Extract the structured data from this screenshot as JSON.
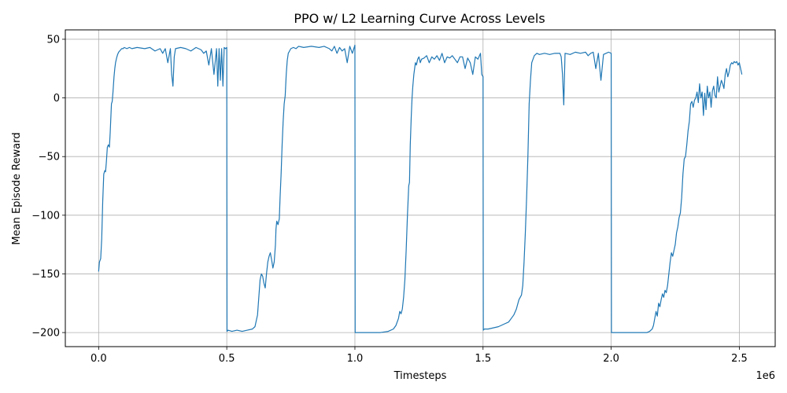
{
  "chart_data": {
    "type": "line",
    "title": "PPO w/ L2 Learning Curve Across Levels",
    "xlabel": "Timesteps",
    "ylabel": "Mean Episode Reward",
    "x_offset_label": "1e6",
    "xlim": [
      -0.13,
      2.64
    ],
    "ylim": [
      -212,
      58
    ],
    "x_ticks": [
      0.0,
      0.5,
      1.0,
      1.5,
      2.0,
      2.5
    ],
    "x_tick_labels": [
      "0.0",
      "0.5",
      "1.0",
      "1.5",
      "2.0",
      "2.5"
    ],
    "y_ticks": [
      50,
      0,
      -50,
      -100,
      -150,
      -200
    ],
    "y_tick_labels": [
      "50",
      "0",
      "−50",
      "−100",
      "−150",
      "−200"
    ],
    "grid": true,
    "line_color": "#1f77b4",
    "series": [
      {
        "x": [
          0.0,
          0.003,
          0.008,
          0.012,
          0.016,
          0.02,
          0.024,
          0.027,
          0.03,
          0.034,
          0.038,
          0.042,
          0.045,
          0.048,
          0.05,
          0.053,
          0.056,
          0.06,
          0.063,
          0.066,
          0.07,
          0.074,
          0.078,
          0.082,
          0.086,
          0.09,
          0.095,
          0.1,
          0.11,
          0.12,
          0.13,
          0.15,
          0.18,
          0.2,
          0.22,
          0.24,
          0.25,
          0.26,
          0.27,
          0.28,
          0.285,
          0.29,
          0.295,
          0.3,
          0.32,
          0.34,
          0.36,
          0.38,
          0.4,
          0.41,
          0.42,
          0.43,
          0.44,
          0.45,
          0.46,
          0.465,
          0.47,
          0.475,
          0.48,
          0.485,
          0.49,
          0.495,
          0.5,
          0.501,
          0.505,
          0.52,
          0.54,
          0.56,
          0.58,
          0.6,
          0.61,
          0.62,
          0.625,
          0.63,
          0.635,
          0.64,
          0.645,
          0.65,
          0.655,
          0.66,
          0.665,
          0.67,
          0.675,
          0.68,
          0.685,
          0.69,
          0.692,
          0.695,
          0.7,
          0.705,
          0.708,
          0.712,
          0.716,
          0.72,
          0.724,
          0.728,
          0.732,
          0.736,
          0.74,
          0.745,
          0.75,
          0.76,
          0.77,
          0.78,
          0.8,
          0.83,
          0.86,
          0.88,
          0.9,
          0.91,
          0.92,
          0.93,
          0.94,
          0.95,
          0.96,
          0.97,
          0.98,
          0.99,
          1.0,
          1.001,
          1.005,
          1.05,
          1.1,
          1.13,
          1.15,
          1.16,
          1.17,
          1.175,
          1.18,
          1.185,
          1.19,
          1.195,
          1.2,
          1.205,
          1.21,
          1.213,
          1.216,
          1.22,
          1.223,
          1.226,
          1.23,
          1.233,
          1.236,
          1.24,
          1.245,
          1.25,
          1.255,
          1.26,
          1.27,
          1.28,
          1.29,
          1.3,
          1.31,
          1.32,
          1.33,
          1.34,
          1.35,
          1.36,
          1.37,
          1.38,
          1.39,
          1.4,
          1.41,
          1.42,
          1.43,
          1.44,
          1.45,
          1.46,
          1.47,
          1.48,
          1.49,
          1.495,
          1.5,
          1.501,
          1.505,
          1.52,
          1.54,
          1.56,
          1.58,
          1.6,
          1.61,
          1.62,
          1.63,
          1.64,
          1.65,
          1.655,
          1.66,
          1.665,
          1.67,
          1.675,
          1.68,
          1.685,
          1.69,
          1.7,
          1.71,
          1.72,
          1.74,
          1.76,
          1.78,
          1.8,
          1.805,
          1.81,
          1.815,
          1.82,
          1.84,
          1.86,
          1.88,
          1.9,
          1.91,
          1.92,
          1.93,
          1.94,
          1.95,
          1.96,
          1.97,
          1.98,
          1.99,
          2.0,
          2.001,
          2.005,
          2.05,
          2.1,
          2.14,
          2.15,
          2.16,
          2.165,
          2.17,
          2.175,
          2.18,
          2.185,
          2.19,
          2.195,
          2.2,
          2.205,
          2.21,
          2.215,
          2.22,
          2.225,
          2.23,
          2.235,
          2.24,
          2.245,
          2.25,
          2.255,
          2.26,
          2.265,
          2.27,
          2.275,
          2.28,
          2.285,
          2.29,
          2.295,
          2.3,
          2.305,
          2.31,
          2.315,
          2.32,
          2.325,
          2.33,
          2.335,
          2.34,
          2.345,
          2.35,
          2.355,
          2.36,
          2.365,
          2.37,
          2.375,
          2.38,
          2.385,
          2.39,
          2.395,
          2.4,
          2.405,
          2.41,
          2.415,
          2.42,
          2.425,
          2.43,
          2.435,
          2.44,
          2.445,
          2.45,
          2.455,
          2.46,
          2.465,
          2.47,
          2.475,
          2.48,
          2.485,
          2.49,
          2.495,
          2.5,
          2.505,
          2.51
        ],
        "y": [
          -148,
          -140,
          -137,
          -120,
          -88,
          -65,
          -62,
          -63,
          -55,
          -42,
          -40,
          -42,
          -30,
          -15,
          -5,
          -3,
          5,
          18,
          25,
          30,
          34,
          37,
          39,
          40,
          41,
          42,
          42,
          43,
          42,
          43,
          42,
          43,
          42,
          43,
          40,
          42,
          38,
          42,
          30,
          42,
          20,
          10,
          35,
          42,
          43,
          42,
          40,
          43,
          41,
          38,
          40,
          28,
          42,
          20,
          42,
          10,
          42,
          15,
          42,
          10,
          43,
          42,
          43,
          -199,
          -198,
          -199,
          -198,
          -199,
          -198,
          -197,
          -195,
          -185,
          -170,
          -155,
          -150,
          -152,
          -158,
          -162,
          -150,
          -140,
          -135,
          -132,
          -138,
          -145,
          -140,
          -125,
          -112,
          -105,
          -108,
          -103,
          -85,
          -65,
          -40,
          -20,
          -5,
          2,
          20,
          32,
          38,
          40,
          42,
          43,
          42,
          44,
          43,
          44,
          43,
          44,
          42,
          40,
          44,
          38,
          43,
          40,
          42,
          30,
          44,
          38,
          45,
          -200,
          -200,
          -200,
          -200,
          -199,
          -197,
          -194,
          -188,
          -182,
          -184,
          -180,
          -170,
          -155,
          -130,
          -100,
          -75,
          -72,
          -40,
          -15,
          0,
          10,
          20,
          25,
          30,
          28,
          33,
          35,
          30,
          33,
          34,
          36,
          30,
          35,
          33,
          36,
          32,
          38,
          30,
          35,
          34,
          36,
          33,
          30,
          35,
          35,
          25,
          34,
          30,
          20,
          35,
          33,
          38,
          20,
          18,
          -198,
          -197,
          -197,
          -196,
          -195,
          -193,
          -191,
          -188,
          -185,
          -180,
          -172,
          -168,
          -160,
          -140,
          -115,
          -85,
          -50,
          -5,
          15,
          30,
          36,
          38,
          37,
          38,
          37,
          38,
          38,
          35,
          20,
          -6,
          38,
          37,
          39,
          38,
          39,
          36,
          38,
          39,
          25,
          38,
          15,
          37,
          38,
          39,
          38,
          -200,
          -200,
          -200,
          -200,
          -200,
          -199,
          -197,
          -194,
          -188,
          -182,
          -186,
          -175,
          -178,
          -172,
          -167,
          -170,
          -164,
          -166,
          -160,
          -150,
          -140,
          -132,
          -135,
          -130,
          -125,
          -115,
          -110,
          -102,
          -98,
          -85,
          -65,
          -52,
          -50,
          -40,
          -28,
          -20,
          -5,
          -3,
          -8,
          -2,
          0,
          5,
          -4,
          12,
          0,
          5,
          -15,
          4,
          -10,
          10,
          0,
          5,
          -8,
          6,
          10,
          2,
          0,
          18,
          5,
          10,
          15,
          12,
          8,
          20,
          25,
          18,
          22,
          28,
          30,
          29,
          31,
          30,
          31,
          28,
          30,
          25,
          20
        ]
      }
    ]
  }
}
